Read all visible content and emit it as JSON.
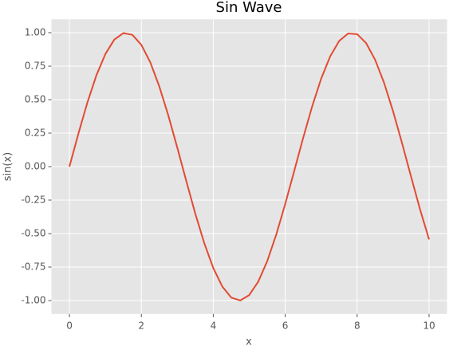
{
  "chart_data": {
    "type": "line",
    "title": "Sin Wave",
    "x_label": "x",
    "y_label": "sin(x)",
    "x": [
      0,
      0.25,
      0.5,
      0.75,
      1,
      1.25,
      1.5,
      1.75,
      2,
      2.25,
      2.5,
      2.75,
      3,
      3.25,
      3.5,
      3.75,
      4,
      4.25,
      4.5,
      4.75,
      5,
      5.25,
      5.5,
      5.75,
      6,
      6.25,
      6.5,
      6.75,
      7,
      7.25,
      7.5,
      7.75,
      8,
      8.25,
      8.5,
      8.75,
      9,
      9.25,
      9.5,
      9.75,
      10
    ],
    "series": [
      {
        "name": "sin(x)",
        "color": "#e24a33",
        "values": [
          0,
          0.247,
          0.479,
          0.682,
          0.841,
          0.949,
          0.997,
          0.984,
          0.909,
          0.778,
          0.598,
          0.382,
          0.141,
          -0.108,
          -0.351,
          -0.572,
          -0.757,
          -0.895,
          -0.978,
          -0.999,
          -0.959,
          -0.859,
          -0.706,
          -0.508,
          -0.279,
          -0.033,
          0.215,
          0.45,
          0.657,
          0.823,
          0.938,
          0.994,
          0.989,
          0.922,
          0.798,
          0.625,
          0.412,
          0.174,
          -0.075,
          -0.32,
          -0.544
        ]
      }
    ],
    "xlim": [
      -0.5,
      10.5
    ],
    "ylim": [
      -1.1,
      1.1
    ],
    "xticks": [
      0,
      2,
      4,
      6,
      8,
      10
    ],
    "yticks": [
      {
        "value": -1,
        "label": "-1.00"
      },
      -0.75,
      {
        "value": -0.5,
        "label": "-0.50"
      },
      -0.25,
      {
        "value": 0,
        "label": "0.00"
      },
      0.25,
      {
        "value": 0.5,
        "label": "0.50"
      },
      0.75,
      {
        "value": 1,
        "label": "1.00"
      }
    ],
    "grid": true,
    "legend": false
  }
}
